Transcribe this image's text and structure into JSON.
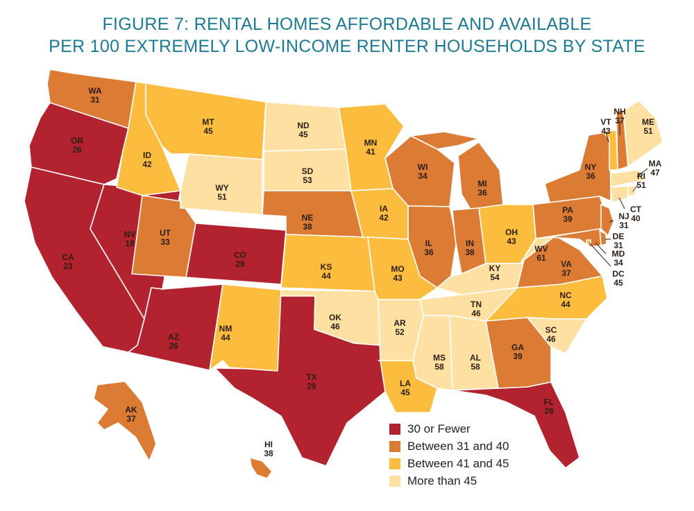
{
  "title": {
    "line1": "FIGURE 7: RENTAL HOMES AFFORDABLE AND AVAILABLE",
    "line2": "PER 100 EXTREMELY LOW-INCOME RENTER HOUSEHOLDS BY STATE"
  },
  "colors": {
    "c1": "#b3232f",
    "c2": "#dc7b33",
    "c3": "#fcbc3d",
    "c4": "#fde0a2"
  },
  "legend": [
    {
      "label": "30 or Fewer",
      "color": "#b3232f"
    },
    {
      "label": "Between 31 and 40",
      "color": "#dc7b33"
    },
    {
      "label": "Between 41 and 45",
      "color": "#fcbc3d"
    },
    {
      "label": "More than 45",
      "color": "#fde0a2"
    }
  ],
  "states": {
    "WA": {
      "code": "WA",
      "value": "31"
    },
    "OR": {
      "code": "OR",
      "value": "26"
    },
    "CA": {
      "code": "CA",
      "value": "23"
    },
    "NV": {
      "code": "NV",
      "value": "18"
    },
    "ID": {
      "code": "ID",
      "value": "42"
    },
    "MT": {
      "code": "MT",
      "value": "45"
    },
    "WY": {
      "code": "WY",
      "value": "51"
    },
    "UT": {
      "code": "UT",
      "value": "33"
    },
    "CO": {
      "code": "CO",
      "value": "29"
    },
    "AZ": {
      "code": "AZ",
      "value": "26"
    },
    "NM": {
      "code": "NM",
      "value": "44"
    },
    "ND": {
      "code": "ND",
      "value": "45"
    },
    "SD": {
      "code": "SD",
      "value": "53"
    },
    "NE": {
      "code": "NE",
      "value": "38"
    },
    "KS": {
      "code": "KS",
      "value": "44"
    },
    "OK": {
      "code": "OK",
      "value": "46"
    },
    "TX": {
      "code": "TX",
      "value": "29"
    },
    "MN": {
      "code": "MN",
      "value": "41"
    },
    "IA": {
      "code": "IA",
      "value": "42"
    },
    "MO": {
      "code": "MO",
      "value": "43"
    },
    "AR": {
      "code": "AR",
      "value": "52"
    },
    "LA": {
      "code": "LA",
      "value": "45"
    },
    "WI": {
      "code": "WI",
      "value": "34"
    },
    "IL": {
      "code": "IL",
      "value": "36"
    },
    "MI": {
      "code": "MI",
      "value": "36"
    },
    "IN": {
      "code": "IN",
      "value": "38"
    },
    "OH": {
      "code": "OH",
      "value": "43"
    },
    "KY": {
      "code": "KY",
      "value": "54"
    },
    "TN": {
      "code": "TN",
      "value": "46"
    },
    "MS": {
      "code": "MS",
      "value": "58"
    },
    "AL": {
      "code": "AL",
      "value": "58"
    },
    "GA": {
      "code": "GA",
      "value": "39"
    },
    "FL": {
      "code": "FL",
      "value": "26"
    },
    "SC": {
      "code": "SC",
      "value": "46"
    },
    "NC": {
      "code": "NC",
      "value": "44"
    },
    "VA": {
      "code": "VA",
      "value": "37"
    },
    "WV": {
      "code": "WV",
      "value": "61"
    },
    "PA": {
      "code": "PA",
      "value": "39"
    },
    "NY": {
      "code": "NY",
      "value": "36"
    },
    "ME": {
      "code": "ME",
      "value": "51"
    },
    "VT": {
      "code": "VT",
      "value": "43"
    },
    "NH": {
      "code": "NH",
      "value": "37"
    },
    "MA": {
      "code": "MA",
      "value": "47"
    },
    "RI": {
      "code": "RI",
      "value": "51"
    },
    "CT": {
      "code": "CT",
      "value": "40"
    },
    "NJ": {
      "code": "NJ",
      "value": "31"
    },
    "DE": {
      "code": "DE",
      "value": "31"
    },
    "MD": {
      "code": "MD",
      "value": "34"
    },
    "DC": {
      "code": "DC",
      "value": "45"
    },
    "AK": {
      "code": "AK",
      "value": "37"
    },
    "HI": {
      "code": "HI",
      "value": "38"
    }
  }
}
